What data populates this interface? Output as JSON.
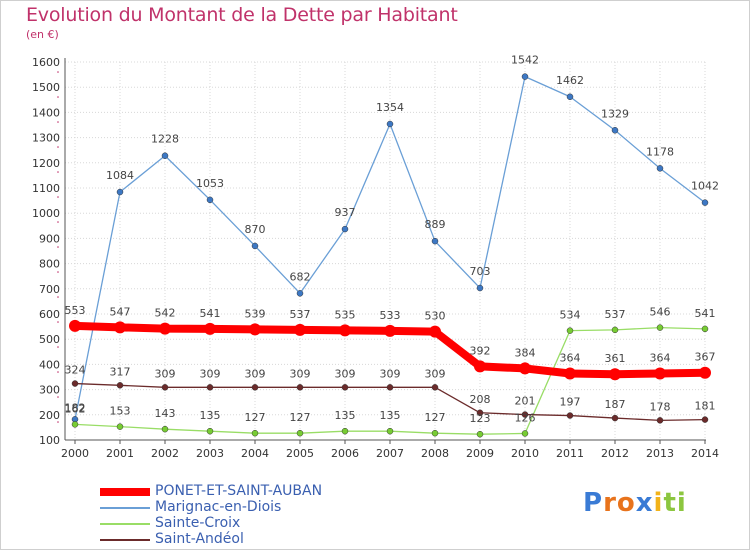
{
  "chart_data": {
    "type": "line",
    "title": "Evolution du Montant de la Dette par Habitant",
    "unit": "(en €)",
    "x": [
      "2000",
      "2001",
      "2002",
      "2003",
      "2004",
      "2005",
      "2006",
      "2007",
      "2008",
      "2009",
      "2010",
      "2011",
      "2012",
      "2013",
      "2014"
    ],
    "ylim": [
      100,
      1600
    ],
    "yticks": [
      100,
      200,
      300,
      400,
      500,
      600,
      700,
      800,
      900,
      1000,
      1100,
      1200,
      1300,
      1400,
      1500,
      1600
    ],
    "grid": true,
    "legend_position": "bottom-left",
    "series": [
      {
        "name": "PONET-ET-SAINT-AUBAN",
        "color": "#ff0000",
        "marker_color": "#ff0000",
        "emphasis": true,
        "values": [
          553,
          547,
          542,
          541,
          539,
          537,
          535,
          533,
          530,
          392,
          384,
          364,
          361,
          364,
          367
        ],
        "labels": [
          "553",
          "547",
          "542",
          "541",
          "539",
          "537",
          "535",
          "533",
          "530",
          "392",
          "384",
          "364",
          "361",
          "364",
          "367"
        ]
      },
      {
        "name": "Marignac-en-Diois",
        "color": "#6a9fd6",
        "marker_color": "#3d78c4",
        "emphasis": false,
        "values": [
          182,
          1084,
          1228,
          1053,
          870,
          682,
          937,
          1354,
          889,
          703,
          1542,
          1462,
          1329,
          1178,
          1042
        ],
        "labels": [
          "182",
          "1084",
          "1228",
          "1053",
          "870",
          "682",
          "937",
          "1354",
          "889",
          "703",
          "1542",
          "1462",
          "1329",
          "1178",
          "1042"
        ]
      },
      {
        "name": "Sainte-Croix",
        "color": "#99dd66",
        "marker_color": "#77cc33",
        "emphasis": false,
        "values": [
          162,
          153,
          143,
          135,
          127,
          127,
          135,
          135,
          127,
          123,
          126,
          534,
          537,
          546,
          541
        ],
        "labels": [
          "162",
          "153",
          "143",
          "135",
          "127",
          "127",
          "135",
          "135",
          "127",
          "123",
          "126",
          "534",
          "537",
          "546",
          "541"
        ]
      },
      {
        "name": "Saint-Andéol",
        "color": "#6b2b2b",
        "marker_color": "#6b2b2b",
        "emphasis": false,
        "values": [
          324,
          317,
          309,
          309,
          309,
          309,
          309,
          309,
          309,
          208,
          201,
          197,
          187,
          178,
          181
        ],
        "labels": [
          "324",
          "317",
          "309",
          "309",
          "309",
          "309",
          "309",
          "309",
          "309",
          "208",
          "201",
          "197",
          "187",
          "178",
          "181"
        ]
      }
    ]
  },
  "logo": {
    "text": "Proxiti",
    "letters": [
      {
        "ch": "P",
        "color": "#3a7bd5"
      },
      {
        "ch": "r",
        "color": "#e8731c"
      },
      {
        "ch": "o",
        "color": "#e8731c"
      },
      {
        "ch": "x",
        "color": "#3a7bd5"
      },
      {
        "ch": "i",
        "color": "#f2b31a"
      },
      {
        "ch": "t",
        "color": "#8cc63f"
      },
      {
        "ch": "i",
        "color": "#8cc63f"
      }
    ]
  }
}
